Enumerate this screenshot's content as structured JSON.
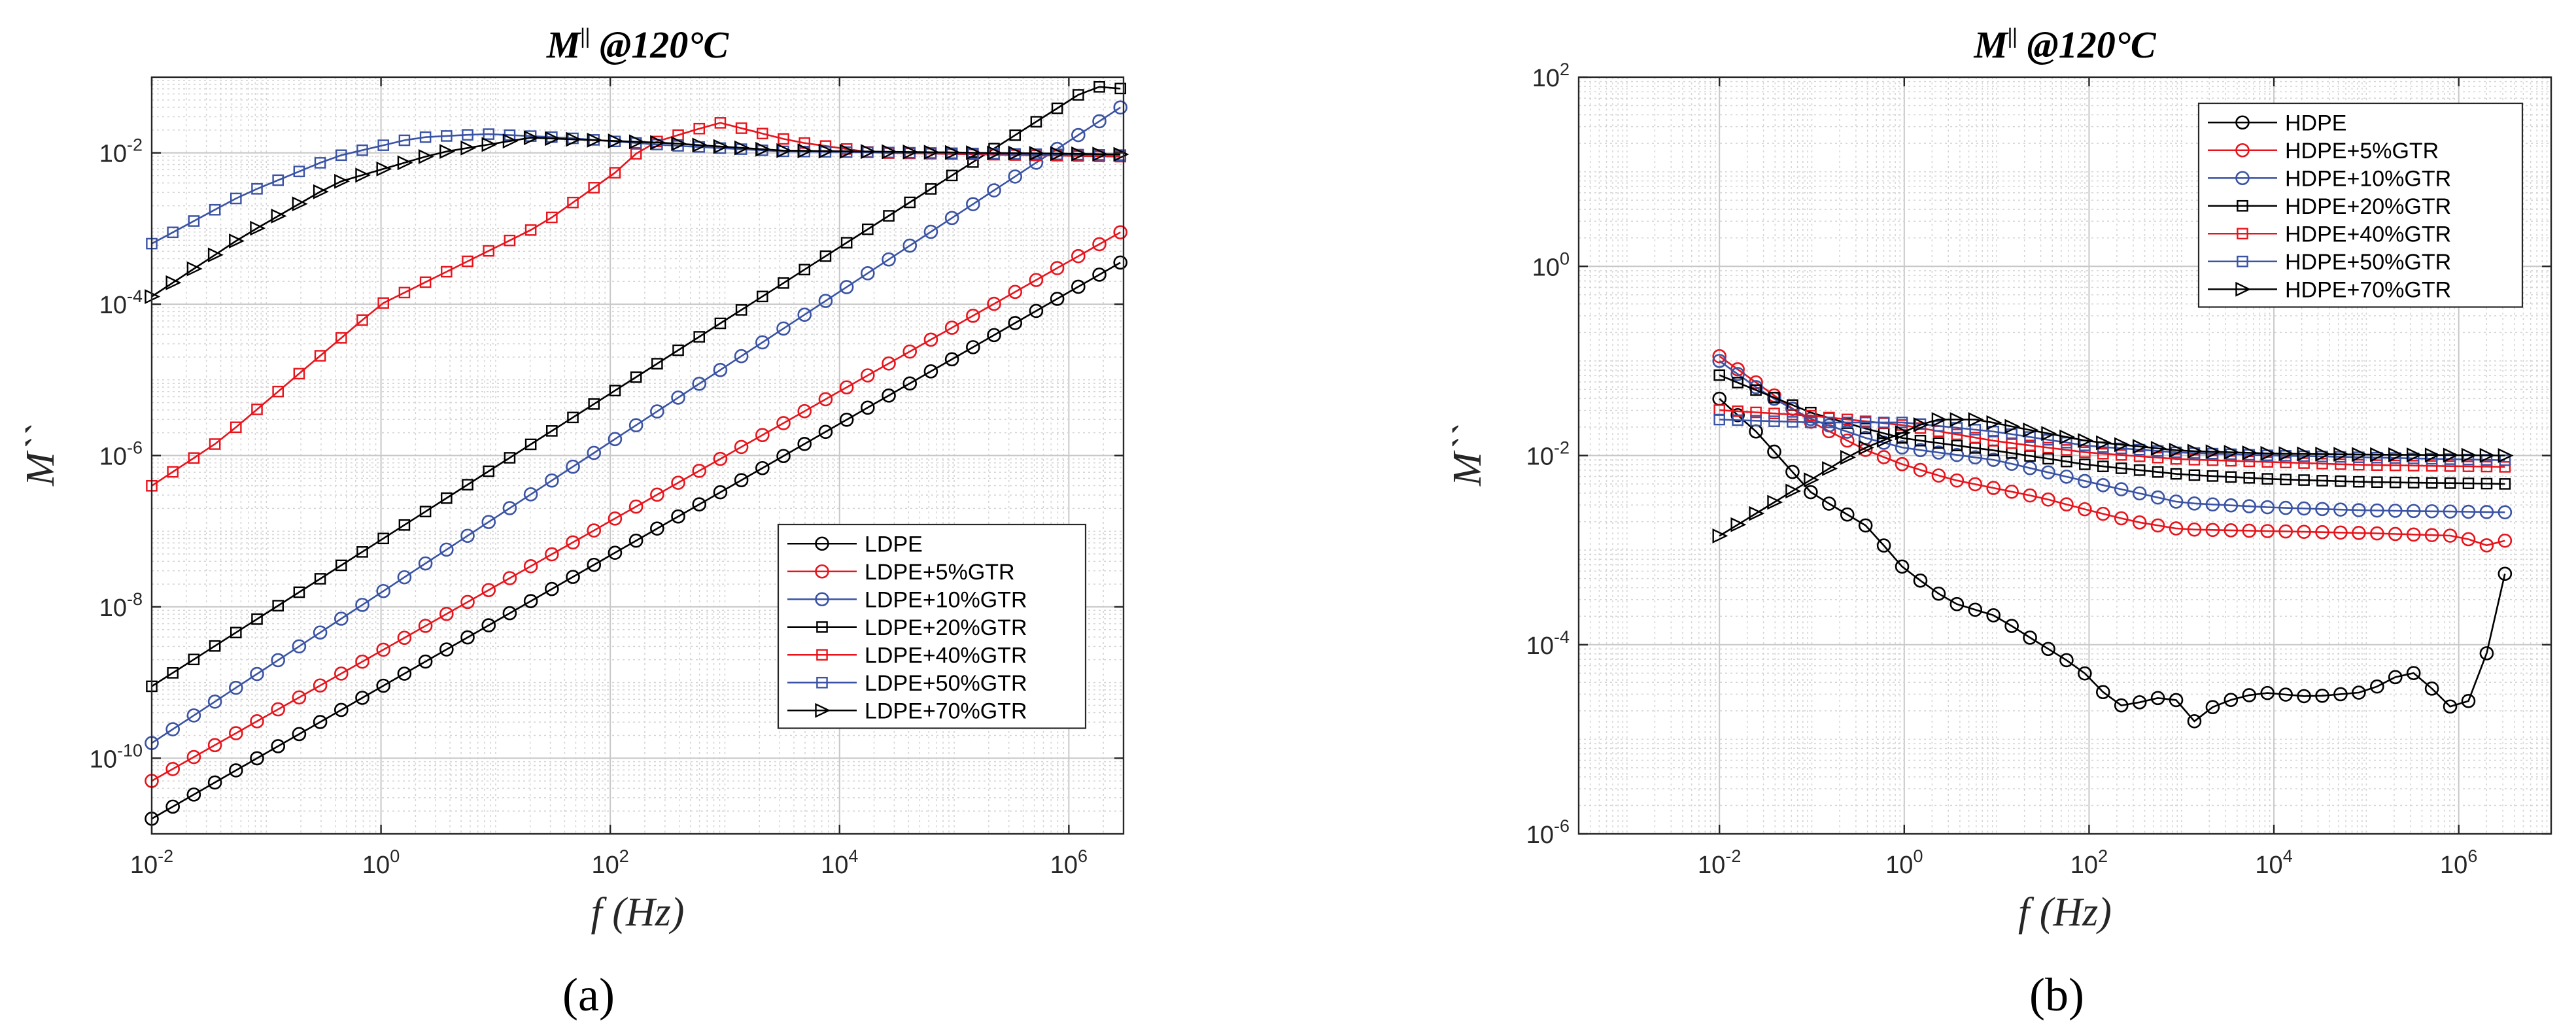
{
  "figure": {
    "panel_labels": [
      "(a)",
      "(b)"
    ]
  },
  "colors": {
    "black": "#000000",
    "red": "#e8141c",
    "blue": "#3a53a4",
    "grid": "#bdbdbd",
    "axis": "#262626"
  },
  "chart_data": [
    {
      "type": "line",
      "panel": "(a)",
      "title_main": "M",
      "title_sup": "||",
      "title_rest": " @120°C",
      "xlabel": "f (Hz)",
      "ylabel": "M``",
      "xscale": "log",
      "yscale": "log",
      "xlim": [
        0.01,
        3000000
      ],
      "ylim": [
        1e-11,
        0.1
      ],
      "xticks": [
        {
          "base": "10",
          "exp": "-2",
          "value": 0.01
        },
        {
          "base": "10",
          "exp": "0",
          "value": 1
        },
        {
          "base": "10",
          "exp": "2",
          "value": 100
        },
        {
          "base": "10",
          "exp": "4",
          "value": 10000
        },
        {
          "base": "10",
          "exp": "6",
          "value": 1000000
        }
      ],
      "yticks": [
        {
          "base": "10",
          "exp": "-10",
          "value": 1e-10
        },
        {
          "base": "10",
          "exp": "-8",
          "value": 1e-08
        },
        {
          "base": "10",
          "exp": "-6",
          "value": 1e-06
        },
        {
          "base": "10",
          "exp": "-4",
          "value": 0.0001
        },
        {
          "base": "10",
          "exp": "-2",
          "value": 0.01
        }
      ],
      "grid": true,
      "minor_grid": true,
      "legend_position": "lower-right",
      "log_x_range": [
        -2,
        6.45
      ],
      "points_per_series": 47,
      "series": [
        {
          "name": "LDPE",
          "color": "#000000",
          "marker": "circle",
          "log_y": [
            [
              -2,
              -10.8
            ],
            [
              6.45,
              -3.45
            ]
          ]
        },
        {
          "name": "LDPE+5%GTR",
          "color": "#e8141c",
          "marker": "circle",
          "log_y": [
            [
              -2,
              -10.3
            ],
            [
              6.45,
              -3.05
            ]
          ]
        },
        {
          "name": "LDPE+10%GTR",
          "color": "#3a53a4",
          "marker": "circle",
          "log_y": [
            [
              -2,
              -9.8
            ],
            [
              6.45,
              -1.4
            ]
          ]
        },
        {
          "name": "LDPE+20%GTR",
          "color": "#000000",
          "marker": "square",
          "log_y": [
            [
              -2,
              -9.05
            ],
            [
              6.2,
              -1.12
            ],
            [
              6.45,
              -1.15
            ]
          ]
        },
        {
          "name": "LDPE+40%GTR",
          "color": "#e8141c",
          "marker": "square",
          "log_y": [
            [
              -2,
              -6.4
            ],
            [
              -1.4,
              -5.8
            ],
            [
              0,
              -4.0
            ],
            [
              1.4,
              -2.95
            ],
            [
              2.1,
              -2.2
            ],
            [
              2.3,
              -1.9
            ],
            [
              2.95,
              -1.6
            ],
            [
              3.6,
              -1.85
            ],
            [
              4.3,
              -2.0
            ],
            [
              6.45,
              -2.05
            ]
          ]
        },
        {
          "name": "LDPE+50%GTR",
          "color": "#3a53a4",
          "marker": "square",
          "log_y": [
            [
              -2,
              -3.2
            ],
            [
              -1.2,
              -2.55
            ],
            [
              -0.4,
              -2.05
            ],
            [
              0.3,
              -1.8
            ],
            [
              0.9,
              -1.75
            ],
            [
              1.6,
              -1.8
            ],
            [
              2.5,
              -1.9
            ],
            [
              3.5,
              -1.98
            ],
            [
              6.45,
              -2.03
            ]
          ]
        },
        {
          "name": "LDPE+70%GTR",
          "color": "#000000",
          "marker": "triangle",
          "log_y": [
            [
              -2,
              -3.9
            ],
            [
              -1.2,
              -3.1
            ],
            [
              -0.4,
              -2.4
            ],
            [
              0.5,
              -2.0
            ],
            [
              1.3,
              -1.8
            ],
            [
              2.5,
              -1.87
            ],
            [
              3.5,
              -1.97
            ],
            [
              6.45,
              -2.02
            ]
          ]
        }
      ]
    },
    {
      "type": "line",
      "panel": "(b)",
      "title_main": "M",
      "title_sup": "||",
      "title_rest": " @120°C",
      "xlabel": "f (Hz)",
      "ylabel": "M``",
      "xscale": "log",
      "yscale": "log",
      "xlim": [
        0.0003,
        10000000
      ],
      "ylim": [
        1e-06,
        100
      ],
      "xticks": [
        {
          "base": "10",
          "exp": "-2",
          "value": 0.01
        },
        {
          "base": "10",
          "exp": "0",
          "value": 1
        },
        {
          "base": "10",
          "exp": "2",
          "value": 100
        },
        {
          "base": "10",
          "exp": "4",
          "value": 10000
        },
        {
          "base": "10",
          "exp": "6",
          "value": 1000000
        }
      ],
      "yticks": [
        {
          "base": "10",
          "exp": "-6",
          "value": 1e-06
        },
        {
          "base": "10",
          "exp": "-4",
          "value": 0.0001
        },
        {
          "base": "10",
          "exp": "-2",
          "value": 0.01
        },
        {
          "base": "10",
          "exp": "0",
          "value": 1
        },
        {
          "base": "10",
          "exp": "2",
          "value": 100
        }
      ],
      "grid": true,
      "minor_grid": true,
      "legend_position": "upper-right",
      "log_x_range": [
        -2,
        6.5
      ],
      "points_per_series": 44,
      "series": [
        {
          "name": "HDPE",
          "color": "#000000",
          "marker": "circle",
          "log_y": [
            [
              -2,
              -1.4
            ],
            [
              -1.6,
              -1.75
            ],
            [
              -1,
              -2.4
            ],
            [
              -0.4,
              -2.75
            ],
            [
              0,
              -3.2
            ],
            [
              0.5,
              -3.55
            ],
            [
              1,
              -3.7
            ],
            [
              1.4,
              -3.95
            ],
            [
              1.9,
              -4.25
            ],
            [
              2.3,
              -4.65
            ],
            [
              2.6,
              -4.6
            ],
            [
              2.8,
              -4.55
            ],
            [
              3,
              -4.6
            ],
            [
              3.2,
              -4.9
            ],
            [
              3.4,
              -4.55
            ],
            [
              3.6,
              -4.6
            ],
            [
              3.8,
              -4.5
            ],
            [
              4.4,
              -4.55
            ],
            [
              5,
              -4.5
            ],
            [
              5.4,
              -4.3
            ],
            [
              5.6,
              -4.3
            ],
            [
              5.8,
              -4.6
            ],
            [
              6,
              -4.7
            ],
            [
              6.2,
              -4.5
            ],
            [
              6.4,
              -3.7
            ],
            [
              6.5,
              -3.25
            ]
          ]
        },
        {
          "name": "HDPE+5%GTR",
          "color": "#e8141c",
          "marker": "circle",
          "log_y": [
            [
              -2,
              -0.95
            ],
            [
              -1.5,
              -1.3
            ],
            [
              -1,
              -1.65
            ],
            [
              -0.4,
              -1.95
            ],
            [
              0,
              -2.1
            ],
            [
              0.5,
              -2.25
            ],
            [
              1,
              -2.35
            ],
            [
              1.5,
              -2.45
            ],
            [
              2,
              -2.58
            ],
            [
              2.5,
              -2.7
            ],
            [
              3,
              -2.78
            ],
            [
              4,
              -2.8
            ],
            [
              5,
              -2.82
            ],
            [
              6,
              -2.85
            ],
            [
              6.3,
              -2.95
            ],
            [
              6.5,
              -2.9
            ]
          ]
        },
        {
          "name": "HDPE+10%GTR",
          "color": "#3a53a4",
          "marker": "circle",
          "log_y": [
            [
              -2,
              -1.0
            ],
            [
              -1.5,
              -1.35
            ],
            [
              -1,
              -1.62
            ],
            [
              -0.4,
              -1.82
            ],
            [
              0,
              -1.92
            ],
            [
              1,
              -2.05
            ],
            [
              2,
              -2.28
            ],
            [
              3,
              -2.5
            ],
            [
              4,
              -2.55
            ],
            [
              5,
              -2.58
            ],
            [
              6.5,
              -2.6
            ]
          ]
        },
        {
          "name": "HDPE+20%GTR",
          "color": "#000000",
          "marker": "square",
          "log_y": [
            [
              -2,
              -1.15
            ],
            [
              -1.5,
              -1.35
            ],
            [
              -1,
              -1.55
            ],
            [
              -0.4,
              -1.72
            ],
            [
              0,
              -1.82
            ],
            [
              1,
              -1.95
            ],
            [
              2,
              -2.1
            ],
            [
              3,
              -2.2
            ],
            [
              4,
              -2.25
            ],
            [
              5,
              -2.28
            ],
            [
              6.5,
              -2.3
            ]
          ]
        },
        {
          "name": "HDPE+40%GTR",
          "color": "#e8141c",
          "marker": "square",
          "log_y": [
            [
              -2,
              -1.52
            ],
            [
              -1,
              -1.58
            ],
            [
              0,
              -1.68
            ],
            [
              1,
              -1.85
            ],
            [
              2,
              -1.97
            ],
            [
              3,
              -2.04
            ],
            [
              4,
              -2.07
            ],
            [
              5,
              -2.1
            ],
            [
              6.5,
              -2.12
            ]
          ]
        },
        {
          "name": "HDPE+50%GTR",
          "color": "#3a53a4",
          "marker": "square",
          "log_y": [
            [
              -2,
              -1.62
            ],
            [
              -1,
              -1.65
            ],
            [
              0,
              -1.65
            ],
            [
              1,
              -1.75
            ],
            [
              2,
              -1.9
            ],
            [
              3,
              -1.97
            ],
            [
              4,
              -2.0
            ],
            [
              5,
              -2.02
            ],
            [
              6.5,
              -2.05
            ]
          ]
        },
        {
          "name": "HDPE+70%GTR",
          "color": "#000000",
          "marker": "triangle",
          "log_y": [
            [
              -2,
              -2.85
            ],
            [
              -1.5,
              -2.55
            ],
            [
              -1,
              -2.25
            ],
            [
              -0.5,
              -1.95
            ],
            [
              0,
              -1.75
            ],
            [
              0.3,
              -1.62
            ],
            [
              0.8,
              -1.62
            ],
            [
              1.2,
              -1.7
            ],
            [
              2,
              -1.85
            ],
            [
              3,
              -1.95
            ],
            [
              4,
              -1.98
            ],
            [
              5,
              -1.99
            ],
            [
              6.5,
              -2.0
            ]
          ]
        }
      ]
    }
  ]
}
